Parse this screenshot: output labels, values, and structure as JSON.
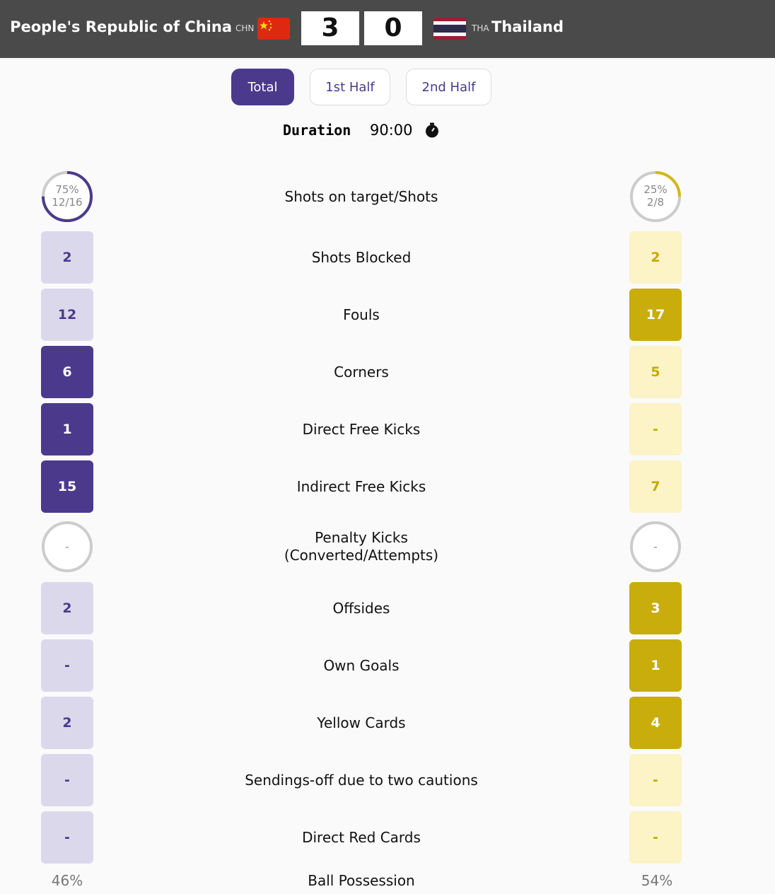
{
  "header": {
    "home_team": "People's Republic of China",
    "home_code": "CHN",
    "home_score": "3",
    "away_score": "0",
    "away_code": "THA",
    "away_team": "Thailand"
  },
  "tabs": [
    "Total",
    "1st Half",
    "2nd Half"
  ],
  "active_tab": 0,
  "duration": {
    "label": "Duration",
    "value": "90:00"
  },
  "stats": [
    {
      "label": "Shots on target/Shots",
      "style": "ring",
      "home": {
        "percent": {
          "value": 75,
          "label": "75%"
        },
        "ratio": "12/16"
      },
      "away": {
        "percent": {
          "value": 25,
          "label": "25%"
        },
        "ratio": "2/8"
      }
    },
    {
      "label": "Shots Blocked",
      "home": 2,
      "away": 2
    },
    {
      "label": "Fouls",
      "home": 12,
      "away": 17
    },
    {
      "label": "Corners",
      "home": 6,
      "away": 5
    },
    {
      "label": "Direct Free Kicks",
      "home": 1,
      "away": "-"
    },
    {
      "label": "Indirect Free Kicks",
      "home": 15,
      "away": 7
    },
    {
      "label": "Penalty Kicks\n(Converted/Attempts)",
      "style": "ring",
      "home": "-",
      "away": "-"
    },
    {
      "label": "Offsides",
      "home": 2,
      "away": 3
    },
    {
      "label": "Own Goals",
      "home": "-",
      "away": 1
    },
    {
      "label": "Yellow Cards",
      "home": 2,
      "away": 4
    },
    {
      "label": "Sendings-off due to two cautions",
      "home": "-",
      "away": "-"
    },
    {
      "label": "Direct Red Cards",
      "home": "-",
      "away": "-"
    }
  ],
  "possession": {
    "label": "Ball Possession",
    "home": "46%",
    "away": "54%"
  }
}
